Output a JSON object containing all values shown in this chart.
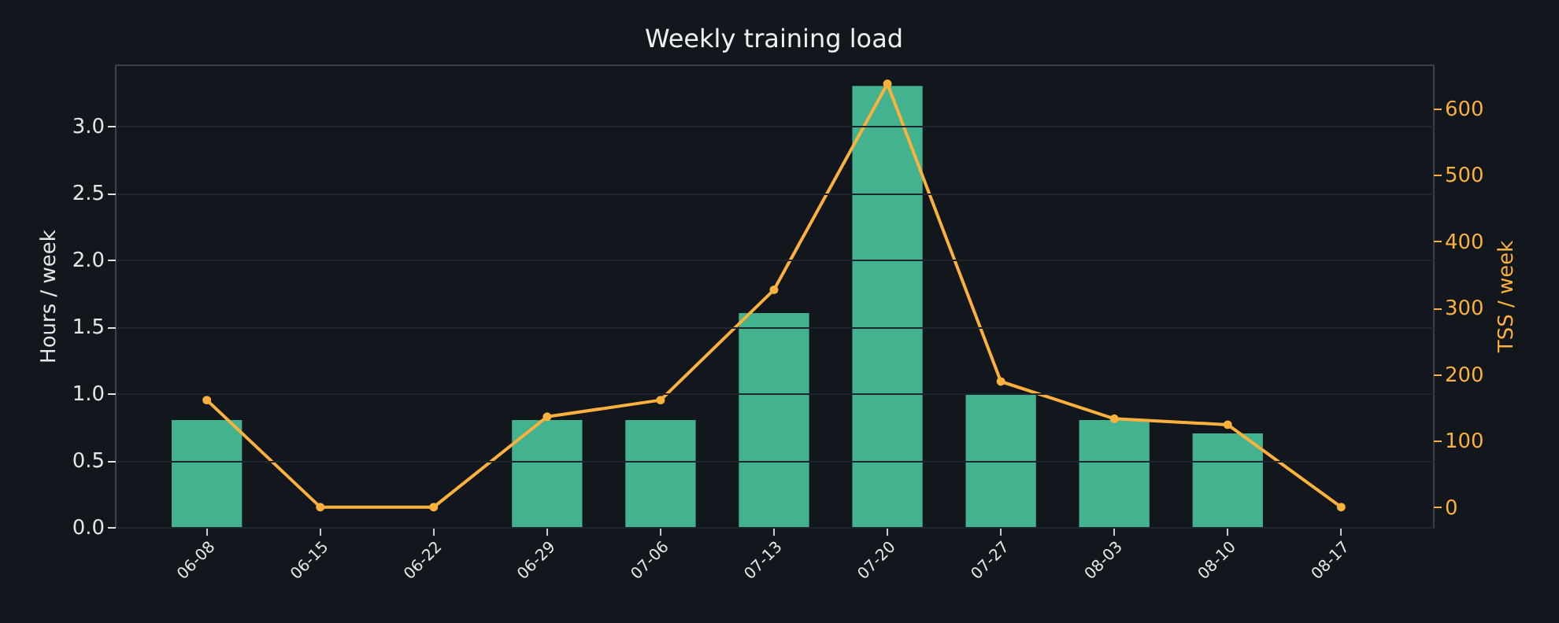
{
  "chart_data": {
    "type": "bar",
    "title": "Weekly training load",
    "ylabel": "Hours / week",
    "y2label": "TSS / week",
    "categories": [
      "06-08",
      "06-15",
      "06-22",
      "06-29",
      "07-06",
      "07-13",
      "07-20",
      "07-27",
      "08-03",
      "08-10",
      "08-17"
    ],
    "series": [
      {
        "color": "#43b28e",
        "values": [
          0.8,
          0,
          0,
          0.8,
          0.8,
          1.6,
          3.3,
          1.0,
          0.8,
          0.7,
          0
        ]
      },
      {
        "type": "line",
        "axis": "y2",
        "color": "#fbb13c",
        "values": [
          161,
          0,
          0,
          136,
          161,
          327,
          637,
          189,
          133,
          124,
          0
        ]
      }
    ],
    "ylim": [
      0,
      3.46
    ],
    "yticks": [
      {
        "value": 0,
        "label": "0.0"
      },
      {
        "value": 0.5,
        "label": "0.5"
      },
      {
        "value": 1,
        "label": "1.0"
      },
      {
        "value": 1.5,
        "label": "1.5"
      },
      {
        "value": 2,
        "label": "2.0"
      },
      {
        "value": 2.5,
        "label": "2.5"
      },
      {
        "value": 3,
        "label": "3.0"
      }
    ],
    "y2lim": [
      -30,
      666
    ],
    "y2ticks": [
      0,
      100,
      200,
      300,
      400,
      500,
      600
    ],
    "grid": "y",
    "marker": "circle",
    "line_style": "solid"
  }
}
